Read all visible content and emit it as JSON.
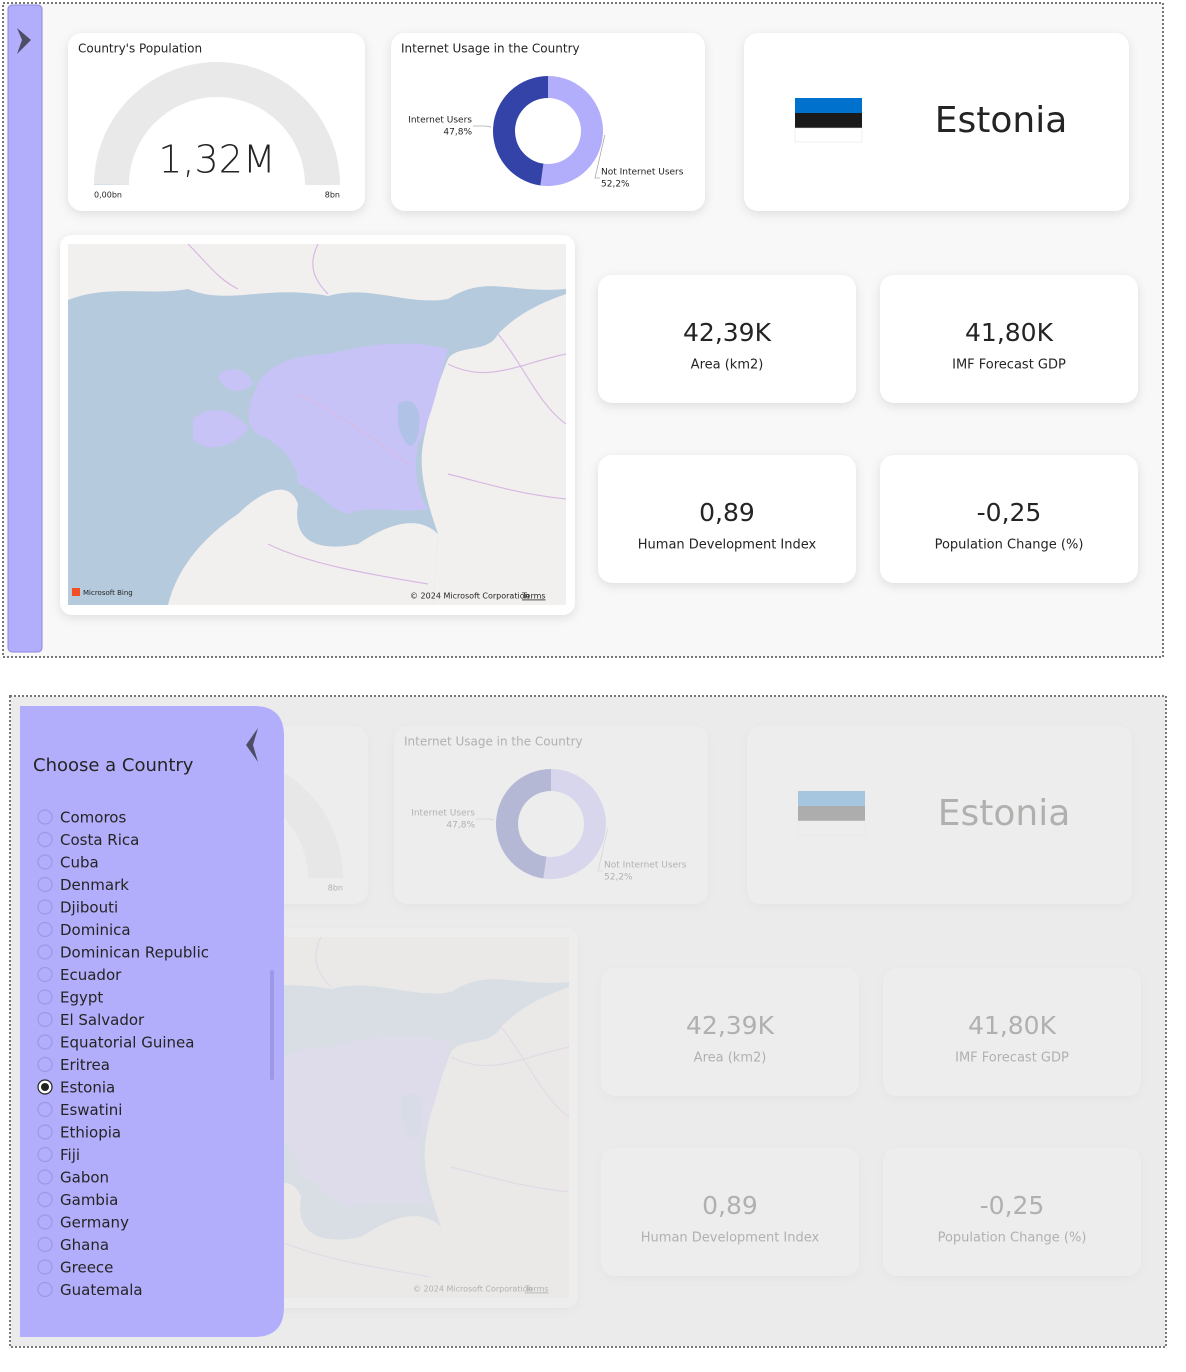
{
  "gauge": {
    "type": "gauge",
    "title": "Country's Population",
    "value": 1320000,
    "value_label": "1,32M",
    "min": {
      "value": 0,
      "label": "0,00bn"
    },
    "max": {
      "value": 8000000000,
      "label": "8bn"
    },
    "color": "#118dff"
  },
  "donut": {
    "type": "pie",
    "title": "Internet Usage in the Country",
    "categories": [
      "Not Internet Users",
      "Internet Users"
    ],
    "values": [
      52.2,
      47.8
    ],
    "value_labels": [
      "52,2%",
      "47,8%"
    ],
    "colors": [
      "#b3aefc",
      "#3343a8"
    ]
  },
  "country": {
    "name": "Estonia"
  },
  "map": {
    "brand": "Microsoft Bing",
    "attribution": "© 2024 Microsoft Corporation",
    "terms": "Terms"
  },
  "cards": [
    {
      "value": "42,39K",
      "label": "Area (km2)"
    },
    {
      "value": "41,80K",
      "label": "IMF Forecast GDP"
    },
    {
      "value": "0,89",
      "label": "Human Development Index"
    },
    {
      "value": "-0,25",
      "label": "Population Change (%)"
    }
  ],
  "slicer": {
    "title": "Choose a Country",
    "selected": "Estonia",
    "items": [
      "Comoros",
      "Costa Rica",
      "Cuba",
      "Denmark",
      "Djibouti",
      "Dominica",
      "Dominican Republic",
      "Ecuador",
      "Egypt",
      "El Salvador",
      "Equatorial Guinea",
      "Eritrea",
      "Estonia",
      "Eswatini",
      "Ethiopia",
      "Fiji",
      "Gabon",
      "Gambia",
      "Germany",
      "Ghana",
      "Greece",
      "Guatemala"
    ]
  }
}
